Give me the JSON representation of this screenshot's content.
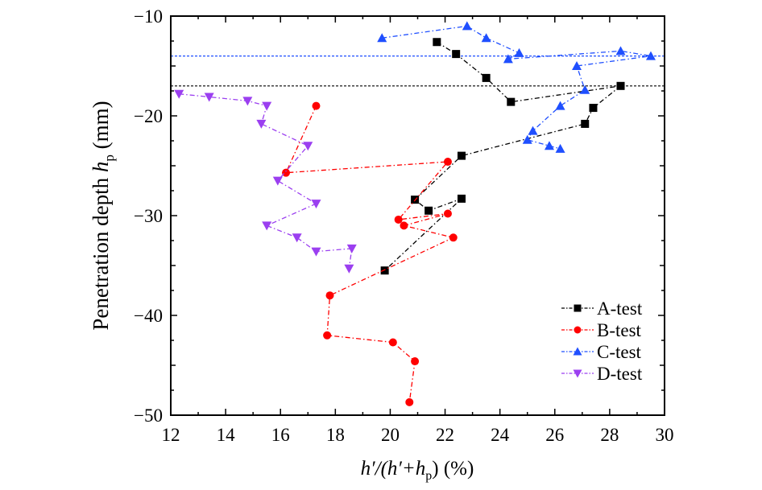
{
  "chart_data": {
    "type": "line",
    "title": "",
    "xlabel": {
      "pre": "h′/(h′+h",
      "sub": "p",
      "post": ") (%)"
    },
    "ylabel": {
      "pre": "Penetration depth ",
      "italic": "h",
      "sub": "p",
      "post": " (mm)"
    },
    "xlim": [
      12,
      30
    ],
    "ylim": [
      -50,
      -10
    ],
    "xticks": [
      12,
      14,
      16,
      18,
      20,
      22,
      24,
      26,
      28,
      30
    ],
    "yticks": [
      -10,
      -20,
      -30,
      -40,
      -50
    ],
    "ytick_labels": [
      "−10",
      "−20",
      "−30",
      "−40",
      "−50"
    ],
    "grid": false,
    "legend_position": "bottom-right",
    "reference_lines": [
      {
        "y": -14,
        "color": "#1f4fff"
      },
      {
        "y": -17,
        "color": "#000000"
      }
    ],
    "series": [
      {
        "name": "A-test",
        "color": "#000000",
        "marker": "square",
        "points": [
          [
            21.7,
            -12.6
          ],
          [
            22.4,
            -13.8
          ],
          [
            23.5,
            -16.2
          ],
          [
            24.4,
            -18.6
          ],
          [
            28.4,
            -17.0
          ],
          [
            27.4,
            -19.2
          ],
          [
            27.1,
            -20.8
          ],
          [
            22.6,
            -24.0
          ],
          [
            20.9,
            -28.4
          ],
          [
            21.4,
            -29.5
          ],
          [
            22.6,
            -28.3
          ],
          [
            19.8,
            -35.5
          ]
        ]
      },
      {
        "name": "B-test",
        "color": "#ff0000",
        "marker": "circle",
        "points": [
          [
            17.3,
            -19.0
          ],
          [
            16.2,
            -25.7
          ],
          [
            22.1,
            -24.6
          ],
          [
            20.3,
            -30.4
          ],
          [
            22.1,
            -29.8
          ],
          [
            20.5,
            -31.0
          ],
          [
            22.3,
            -32.2
          ],
          [
            17.8,
            -38.0
          ],
          [
            17.7,
            -42.0
          ],
          [
            20.1,
            -42.7
          ],
          [
            20.9,
            -44.6
          ],
          [
            20.7,
            -48.7
          ]
        ]
      },
      {
        "name": "C-test",
        "color": "#1f4fff",
        "marker": "triangle-up",
        "points": [
          [
            19.7,
            -12.2
          ],
          [
            22.8,
            -11.0
          ],
          [
            23.5,
            -12.2
          ],
          [
            24.7,
            -13.7
          ],
          [
            24.3,
            -14.3
          ],
          [
            28.4,
            -13.5
          ],
          [
            29.5,
            -14.0
          ],
          [
            26.8,
            -15.0
          ],
          [
            27.1,
            -17.4
          ],
          [
            26.2,
            -19.0
          ],
          [
            25.2,
            -21.5
          ],
          [
            25.0,
            -22.4
          ],
          [
            25.8,
            -23.0
          ],
          [
            26.2,
            -23.3
          ]
        ]
      },
      {
        "name": "D-test",
        "color": "#9b3ff0",
        "marker": "triangle-down",
        "points": [
          [
            12.3,
            -17.8
          ],
          [
            13.4,
            -18.1
          ],
          [
            14.8,
            -18.5
          ],
          [
            15.5,
            -19.0
          ],
          [
            15.3,
            -20.8
          ],
          [
            17.0,
            -23.0
          ],
          [
            15.9,
            -26.5
          ],
          [
            17.3,
            -28.8
          ],
          [
            15.5,
            -31.0
          ],
          [
            16.6,
            -32.2
          ],
          [
            17.3,
            -33.6
          ],
          [
            18.6,
            -33.3
          ],
          [
            18.5,
            -35.3
          ]
        ]
      }
    ]
  }
}
